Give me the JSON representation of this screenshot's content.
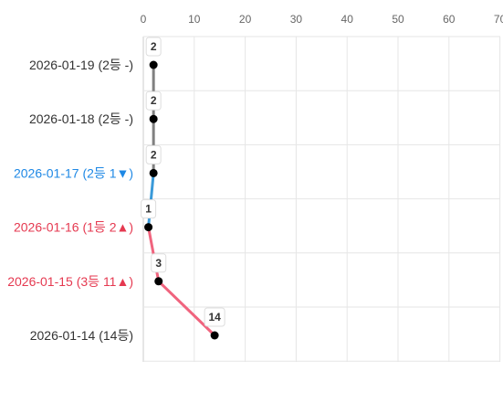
{
  "chart_data": {
    "type": "line",
    "orientation": "horizontal",
    "x_ticks": [
      0,
      10,
      20,
      30,
      40,
      50,
      60,
      70
    ],
    "xlim": [
      0,
      70
    ],
    "grid": true,
    "categories": [
      {
        "label": "2026-01-19 (2등 -)",
        "value": 2,
        "label_color": "#333333",
        "segment_color": "#808080"
      },
      {
        "label": "2026-01-18 (2등 -)",
        "value": 2,
        "label_color": "#333333",
        "segment_color": "#808080"
      },
      {
        "label": "2026-01-17 (2등 1▼)",
        "value": 2,
        "label_color": "#1e88e5",
        "segment_color": "#3a9ad9"
      },
      {
        "label": "2026-01-16 (1등 2▲)",
        "value": 1,
        "label_color": "#e53950",
        "segment_color": "#f0647e"
      },
      {
        "label": "2026-01-15 (3등 11▲)",
        "value": 3,
        "label_color": "#e53950",
        "segment_color": "#f0647e"
      },
      {
        "label": "2026-01-14 (14등)",
        "value": 14,
        "label_color": "#333333",
        "segment_color": null
      }
    ],
    "colors": {
      "grid": "#e6e6e6",
      "point": "#000000",
      "value_box_border": "#dddddd"
    }
  }
}
